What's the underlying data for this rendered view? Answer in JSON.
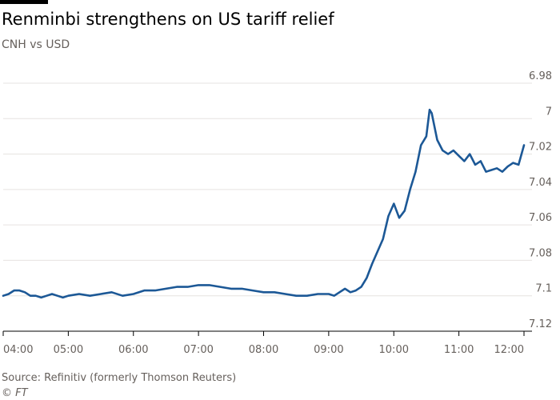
{
  "chart_data": {
    "type": "line",
    "title": "Renminbi strengthens on US tariff relief",
    "subtitle": "CNH vs USD",
    "y_inverted": true,
    "ylim": [
      6.98,
      7.12
    ],
    "y_ticks": [
      "6.98",
      "7",
      "7.02",
      "7.04",
      "7.06",
      "7.08",
      "7.1",
      "7.12"
    ],
    "y_tick_values": [
      6.98,
      7.0,
      7.02,
      7.04,
      7.06,
      7.08,
      7.1,
      7.12
    ],
    "x_ticks": [
      "04:00",
      "05:00",
      "06:00",
      "07:00",
      "08:00",
      "09:00",
      "10:00",
      "11:00",
      "12:00"
    ],
    "xlim": [
      "04:00",
      "12:00"
    ],
    "grid": true,
    "line_color": "#1c5896",
    "series": [
      {
        "x": [
          "04:00",
          "04:05",
          "04:10",
          "04:15",
          "04:20",
          "04:25",
          "04:30",
          "04:35",
          "04:40",
          "04:45",
          "04:50",
          "04:55",
          "05:00",
          "05:10",
          "05:20",
          "05:30",
          "05:40",
          "05:50",
          "06:00",
          "06:10",
          "06:20",
          "06:30",
          "06:40",
          "06:50",
          "07:00",
          "07:10",
          "07:20",
          "07:30",
          "07:40",
          "07:50",
          "08:00",
          "08:10",
          "08:20",
          "08:30",
          "08:40",
          "08:50",
          "09:00",
          "09:05",
          "09:10",
          "09:15",
          "09:20",
          "09:25",
          "09:30",
          "09:35",
          "09:40",
          "09:45",
          "09:50",
          "09:55",
          "10:00",
          "10:05",
          "10:10",
          "10:15",
          "10:20",
          "10:25",
          "10:30",
          "10:33",
          "10:35",
          "10:37",
          "10:40",
          "10:45",
          "10:50",
          "10:55",
          "11:00",
          "11:05",
          "11:10",
          "11:15",
          "11:20",
          "11:25",
          "11:30",
          "11:35",
          "11:40",
          "11:45",
          "11:50",
          "11:55",
          "12:00"
        ],
        "y": [
          7.1,
          7.099,
          7.097,
          7.097,
          7.098,
          7.1,
          7.1,
          7.101,
          7.1,
          7.099,
          7.1,
          7.101,
          7.1,
          7.099,
          7.1,
          7.099,
          7.098,
          7.1,
          7.099,
          7.097,
          7.097,
          7.096,
          7.095,
          7.095,
          7.094,
          7.094,
          7.095,
          7.096,
          7.096,
          7.097,
          7.098,
          7.098,
          7.099,
          7.1,
          7.1,
          7.099,
          7.099,
          7.1,
          7.098,
          7.096,
          7.098,
          7.097,
          7.095,
          7.09,
          7.082,
          7.075,
          7.068,
          7.055,
          7.048,
          7.056,
          7.052,
          7.04,
          7.03,
          7.015,
          7.01,
          6.995,
          6.997,
          7.003,
          7.012,
          7.018,
          7.02,
          7.018,
          7.021,
          7.024,
          7.02,
          7.026,
          7.024,
          7.03,
          7.029,
          7.028,
          7.03,
          7.027,
          7.025,
          7.026,
          7.015
        ]
      }
    ]
  },
  "footer": {
    "source": "Source: Refinitiv (formerly Thomson Reuters)",
    "copyright": "© FT"
  }
}
